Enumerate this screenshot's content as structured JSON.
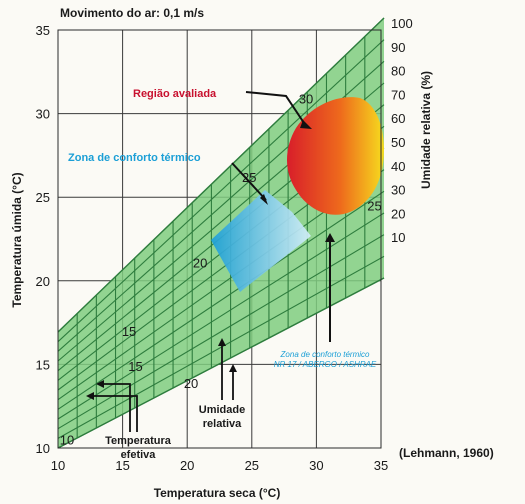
{
  "chart_data": {
    "type": "nomogram",
    "title": "Movimento do ar: 0,1 m/s",
    "xlabel": "Temperatura seca (°C)",
    "ylabel_left": "Temperatura úmida (°C)",
    "ylabel_right": "Umidade relativa (%)",
    "x_ticks": [
      10,
      15,
      20,
      25,
      30,
      35
    ],
    "y_ticks": [
      10,
      15,
      20,
      25,
      30,
      35
    ],
    "xlim": [
      10,
      35
    ],
    "ylim": [
      10,
      35
    ],
    "rh_ticks": [
      100,
      90,
      80,
      70,
      60,
      50,
      40,
      30,
      20,
      10
    ],
    "effective_temp_labels": [
      {
        "t": "10",
        "x": 10.7,
        "y": 10.2
      },
      {
        "t": "15",
        "x": 16.0,
        "y": 14.6
      },
      {
        "t": "20",
        "x": 21.0,
        "y": 20.8
      },
      {
        "t": "25",
        "x": 24.8,
        "y": 25.9
      },
      {
        "t": "30",
        "x": 29.2,
        "y": 30.6
      },
      {
        "t": "15",
        "x": 15.5,
        "y": 16.7
      },
      {
        "t": "20",
        "x": 20.3,
        "y": 13.6
      },
      {
        "t": "25",
        "x": 34.5,
        "y": 24.2
      }
    ],
    "annotations": [
      {
        "text": "Região avaliada",
        "color": "#c8102e"
      },
      {
        "text": "Zona de conforto térmico",
        "color": "#1b9fd6"
      },
      {
        "text": "Zona de conforto térmico",
        "color": "#1b9fd6"
      },
      {
        "text": "NR 17 / ABERGO / ASHRAE",
        "color": "#1b9fd6"
      },
      {
        "text": "Umidade",
        "color": "#1a1a1a"
      },
      {
        "text": "relativa",
        "color": "#1a1a1a"
      },
      {
        "text": "Temperatura",
        "color": "#1a1a1a"
      },
      {
        "text": "efetiva",
        "color": "#1a1a1a"
      }
    ],
    "source": "(Lehmann, 1960)",
    "colors": {
      "grid_fill": "#7fcc7f",
      "grid_line": "#2e7d3e",
      "comfort": "#29a9e0",
      "evaluated_hot": "#d81e2a",
      "evaluated_warm": "#f6dc1e"
    }
  }
}
